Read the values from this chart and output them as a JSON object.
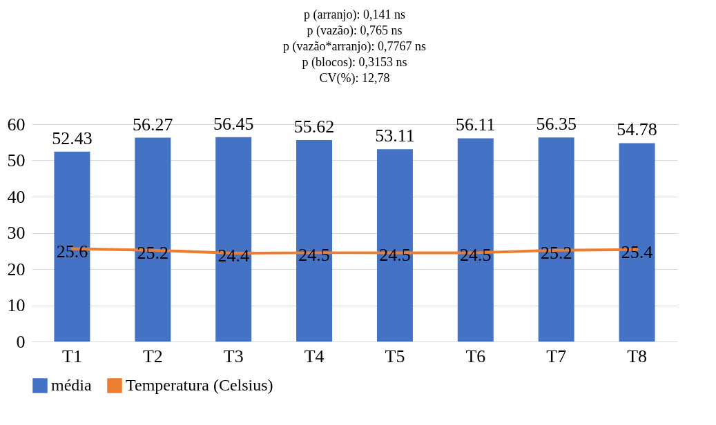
{
  "chart_data": {
    "type": "bar",
    "annotations": [
      "p (arranjo): 0,141 ns",
      "p (vazão): 0,765 ns",
      "p (vazão*arranjo): 0,7767 ns",
      "p (blocos): 0,3153 ns",
      "CV(%): 12,78"
    ],
    "categories": [
      "T1",
      "T2",
      "T3",
      "T4",
      "T5",
      "T6",
      "T7",
      "T8"
    ],
    "series": [
      {
        "name": "média",
        "color": "#4472c4",
        "values": [
          52.43,
          56.27,
          56.45,
          55.62,
          53.11,
          56.11,
          56.35,
          54.78
        ]
      },
      {
        "name": "Temperatura (Celsius)",
        "type": "line",
        "color": "#ed7d31",
        "values": [
          25.6,
          25.2,
          24.4,
          24.5,
          24.5,
          24.5,
          25.2,
          25.4
        ]
      }
    ],
    "ylim": [
      0,
      60
    ],
    "yticks": [
      0,
      10,
      20,
      30,
      40,
      50,
      60
    ],
    "grid": "y",
    "legend": "bottom",
    "data_labels": true
  }
}
